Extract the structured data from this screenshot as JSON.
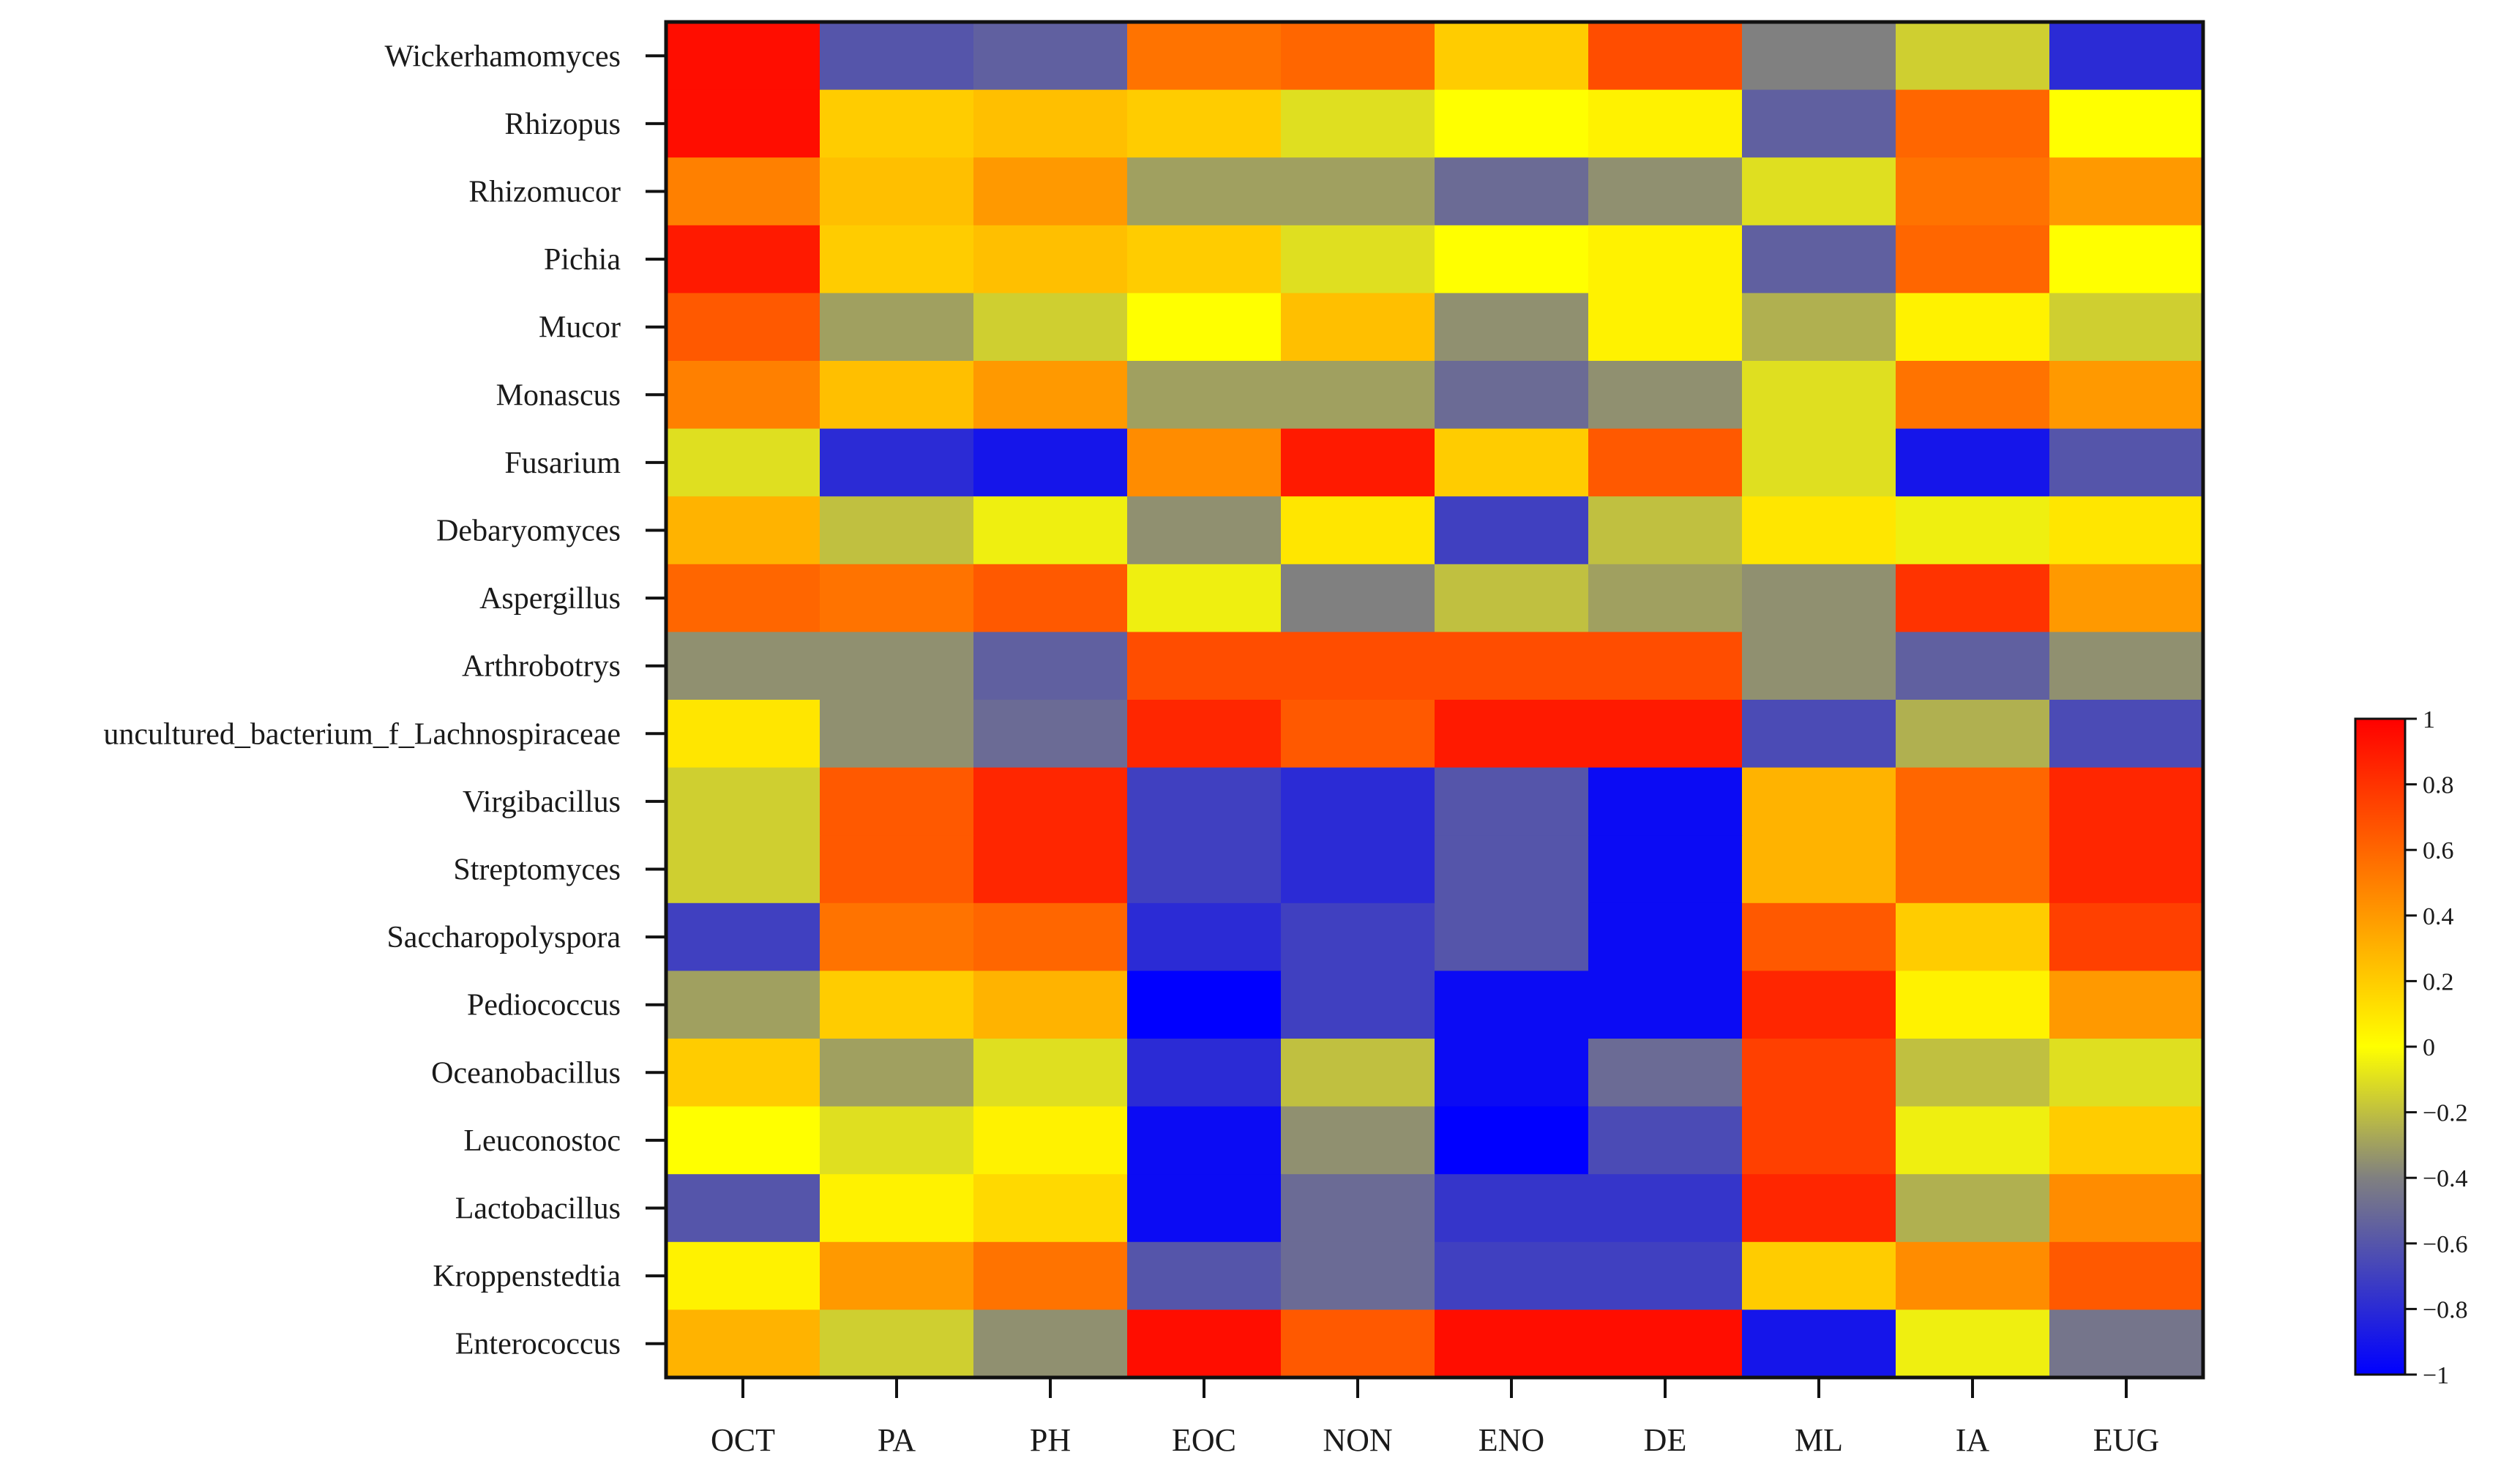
{
  "chart_data": {
    "type": "heatmap",
    "title": "",
    "xlabel": "",
    "ylabel": "",
    "columns": [
      "OCT",
      "PA",
      "PH",
      "EOC",
      "NON",
      "ENO",
      "DE",
      "ML",
      "IA",
      "EUG"
    ],
    "rows": [
      "Wickerhamomyces",
      "Rhizopus",
      "Rhizomucor",
      "Pichia",
      "Mucor",
      "Monascus",
      "Fusarium",
      "Debaryomyces",
      "Aspergillus",
      "Arthrobotrys",
      "uncultured_bacterium_f_Lachnospiraceae",
      "Virgibacillus",
      "Streptomyces",
      "Saccharopolyspora",
      "Pediococcus",
      "Oceanobacillus",
      "Leuconostoc",
      "Lactobacillus",
      "Kroppenstedtia",
      "Enterococcus"
    ],
    "values": [
      [
        0.95,
        -0.6,
        -0.55,
        0.55,
        0.6,
        0.2,
        0.7,
        -0.4,
        -0.15,
        -0.8
      ],
      [
        0.95,
        0.2,
        0.25,
        0.2,
        -0.1,
        0.0,
        0.05,
        -0.55,
        0.6,
        0.0
      ],
      [
        0.5,
        0.25,
        0.4,
        -0.3,
        -0.3,
        -0.5,
        -0.35,
        -0.1,
        0.55,
        0.4
      ],
      [
        0.9,
        0.2,
        0.25,
        0.2,
        -0.1,
        0.0,
        0.05,
        -0.55,
        0.6,
        0.0
      ],
      [
        0.65,
        -0.3,
        -0.15,
        0.0,
        0.25,
        -0.35,
        0.05,
        -0.25,
        0.05,
        -0.15
      ],
      [
        0.5,
        0.25,
        0.4,
        -0.3,
        -0.3,
        -0.5,
        -0.35,
        -0.1,
        0.55,
        0.4
      ],
      [
        -0.1,
        -0.8,
        -0.9,
        0.45,
        0.9,
        0.2,
        0.65,
        -0.1,
        -0.9,
        -0.6
      ],
      [
        0.3,
        -0.2,
        -0.05,
        -0.35,
        0.1,
        -0.7,
        -0.2,
        0.1,
        -0.05,
        0.1
      ],
      [
        0.6,
        0.55,
        0.65,
        -0.05,
        -0.4,
        -0.2,
        -0.3,
        -0.35,
        0.8,
        0.4
      ],
      [
        -0.35,
        -0.35,
        -0.55,
        0.7,
        0.7,
        0.7,
        0.7,
        -0.35,
        -0.55,
        -0.35
      ],
      [
        0.1,
        -0.35,
        -0.5,
        0.85,
        0.65,
        0.9,
        0.9,
        -0.65,
        -0.25,
        -0.65
      ],
      [
        -0.15,
        0.65,
        0.85,
        -0.7,
        -0.8,
        -0.6,
        -0.95,
        0.3,
        0.6,
        0.85
      ],
      [
        -0.15,
        0.65,
        0.85,
        -0.7,
        -0.8,
        -0.6,
        -0.95,
        0.3,
        0.6,
        0.85
      ],
      [
        -0.7,
        0.55,
        0.6,
        -0.8,
        -0.7,
        -0.6,
        -0.95,
        0.65,
        0.2,
        0.75
      ],
      [
        -0.3,
        0.2,
        0.3,
        -1.0,
        -0.7,
        -0.95,
        -0.95,
        0.85,
        0.05,
        0.4
      ],
      [
        0.2,
        -0.3,
        -0.1,
        -0.8,
        -0.2,
        -0.95,
        -0.5,
        0.75,
        -0.2,
        -0.1
      ],
      [
        0.0,
        -0.1,
        0.05,
        -0.95,
        -0.35,
        -1.0,
        -0.65,
        0.75,
        -0.05,
        0.2
      ],
      [
        -0.6,
        0.05,
        0.15,
        -0.95,
        -0.5,
        -0.75,
        -0.75,
        0.85,
        -0.25,
        0.45
      ],
      [
        0.05,
        0.4,
        0.55,
        -0.6,
        -0.5,
        -0.7,
        -0.7,
        0.2,
        0.45,
        0.65
      ],
      [
        0.3,
        -0.15,
        -0.35,
        0.95,
        0.65,
        0.95,
        0.95,
        -0.9,
        -0.05,
        -0.45
      ]
    ],
    "colorbar": {
      "min": -1,
      "max": 1,
      "ticks": [
        1,
        0.8,
        0.6,
        0.4,
        0.2,
        0,
        -0.2,
        -0.4,
        -0.6,
        -0.8,
        -1
      ],
      "tick_labels": [
        "1",
        "0.8",
        "0.6",
        "0.4",
        "0.2",
        "0",
        "−0.2",
        "−0.4",
        "−0.6",
        "−0.8",
        "−1"
      ],
      "colors": [
        "#0000ff",
        "#808080",
        "#ffff00",
        "#ff0000"
      ]
    },
    "grid": false,
    "legend": "colorbar right"
  }
}
